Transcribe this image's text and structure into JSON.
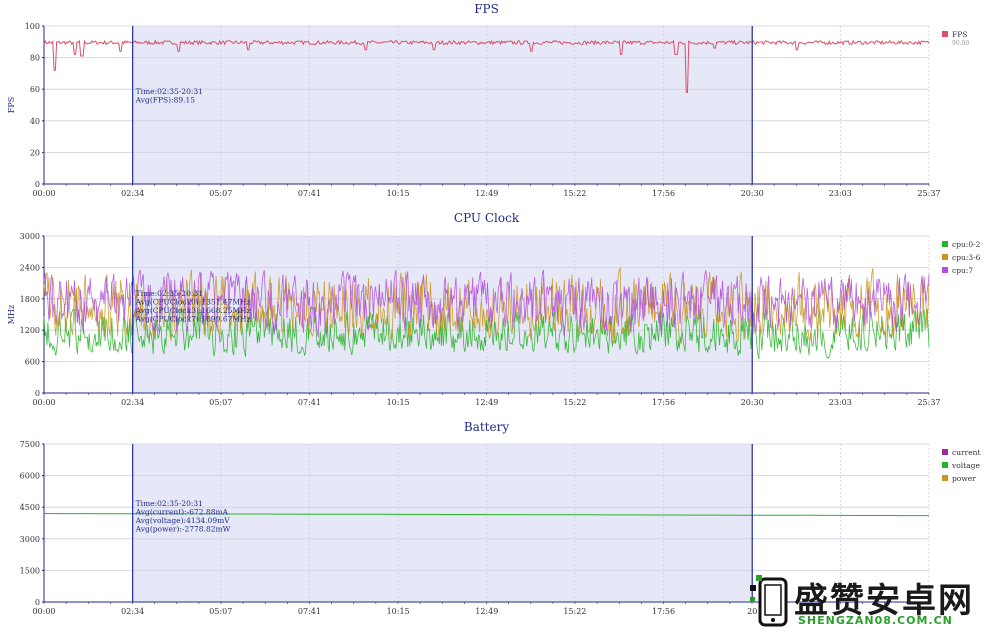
{
  "chart_data": [
    {
      "type": "line",
      "title": "FPS",
      "ylabel": "FPS",
      "ylim": [
        0,
        100
      ],
      "yticks": [
        0,
        20,
        40,
        60,
        80,
        100
      ],
      "xticks": [
        "00:00",
        "02:34",
        "05:07",
        "07:41",
        "10:15",
        "12:49",
        "15:22",
        "17:56",
        "20:30",
        "23:03",
        "25:37"
      ],
      "selection": {
        "start": "02:34",
        "end": "20:30"
      },
      "annotation": [
        "Time:02:35-20:31",
        "Avg(FPS):89.15"
      ],
      "legend": "right",
      "series": [
        {
          "name": "FPS",
          "subtitle": "90.00",
          "color": "#d8506a",
          "base": 89.5,
          "noise": 1.2,
          "dips": [
            [
              0.3,
              72
            ],
            [
              0.9,
              82
            ],
            [
              1.1,
              81
            ],
            [
              2.2,
              84
            ],
            [
              3.9,
              84
            ],
            [
              5.9,
              85
            ],
            [
              9.3,
              85
            ],
            [
              11.3,
              85
            ],
            [
              14.1,
              84
            ],
            [
              16.7,
              82
            ],
            [
              18.3,
              82
            ],
            [
              18.6,
              58
            ],
            [
              19.4,
              86
            ],
            [
              21.8,
              85
            ]
          ]
        }
      ]
    },
    {
      "type": "line",
      "title": "CPU Clock",
      "ylabel": "MHz",
      "ylim": [
        0,
        3000
      ],
      "yticks": [
        0,
        600,
        1200,
        1800,
        2400,
        3000
      ],
      "xticks": [
        "00:00",
        "02:34",
        "05:07",
        "07:41",
        "10:15",
        "12:49",
        "15:22",
        "17:56",
        "20:30",
        "23:03",
        "25:37"
      ],
      "selection": {
        "start": "02:34",
        "end": "20:30"
      },
      "annotation": [
        "Time:02:35-20:31",
        "Avg(CPUClock0):1351.47MHz",
        "Avg(CPUClock3):1668.25MHz",
        "Avg(CPUClock7):1899.67MHz"
      ],
      "legend": "right",
      "series": [
        {
          "name": "cpu:0-2",
          "color": "#28b428",
          "min": 600,
          "max": 1700,
          "mid": 1050
        },
        {
          "name": "cpu:3-6",
          "color": "#c8961e",
          "min": 900,
          "max": 2450,
          "mid": 1550
        },
        {
          "name": "cpu:7",
          "color": "#b450dc",
          "min": 1000,
          "max": 2400,
          "mid": 1800
        }
      ]
    },
    {
      "type": "line",
      "title": "Battery",
      "ylabel": "",
      "ylim": [
        0,
        7500
      ],
      "yticks": [
        0,
        1500,
        3000,
        4500,
        6000,
        7500
      ],
      "xticks": [
        "00:00",
        "02:34",
        "05:07",
        "07:41",
        "10:15",
        "12:49",
        "15:22",
        "17:56",
        "20"
      ],
      "selection": {
        "start": "02:34",
        "end": "20:30"
      },
      "annotation": [
        "Time:02:35-20:31",
        "Avg(current):-672.88mA",
        "Avg(voltage):4134.09mV",
        "Avg(power):-2778.82mW"
      ],
      "legend": "right",
      "series": [
        {
          "name": "current",
          "color": "#a0289a",
          "values": []
        },
        {
          "name": "voltage",
          "color": "#28b428",
          "start": 4200,
          "end": 4100
        },
        {
          "name": "power",
          "color": "#c8961e",
          "values": []
        }
      ]
    }
  ],
  "watermark": {
    "brand": "盛赞安卓网",
    "domain": "SHENGZAN08.COM.CN"
  },
  "colors": {
    "axis": "#1f2a8a",
    "grid": "#cfcfdf",
    "selection": "#e6e8f8",
    "marker": "#1f2aa0"
  }
}
